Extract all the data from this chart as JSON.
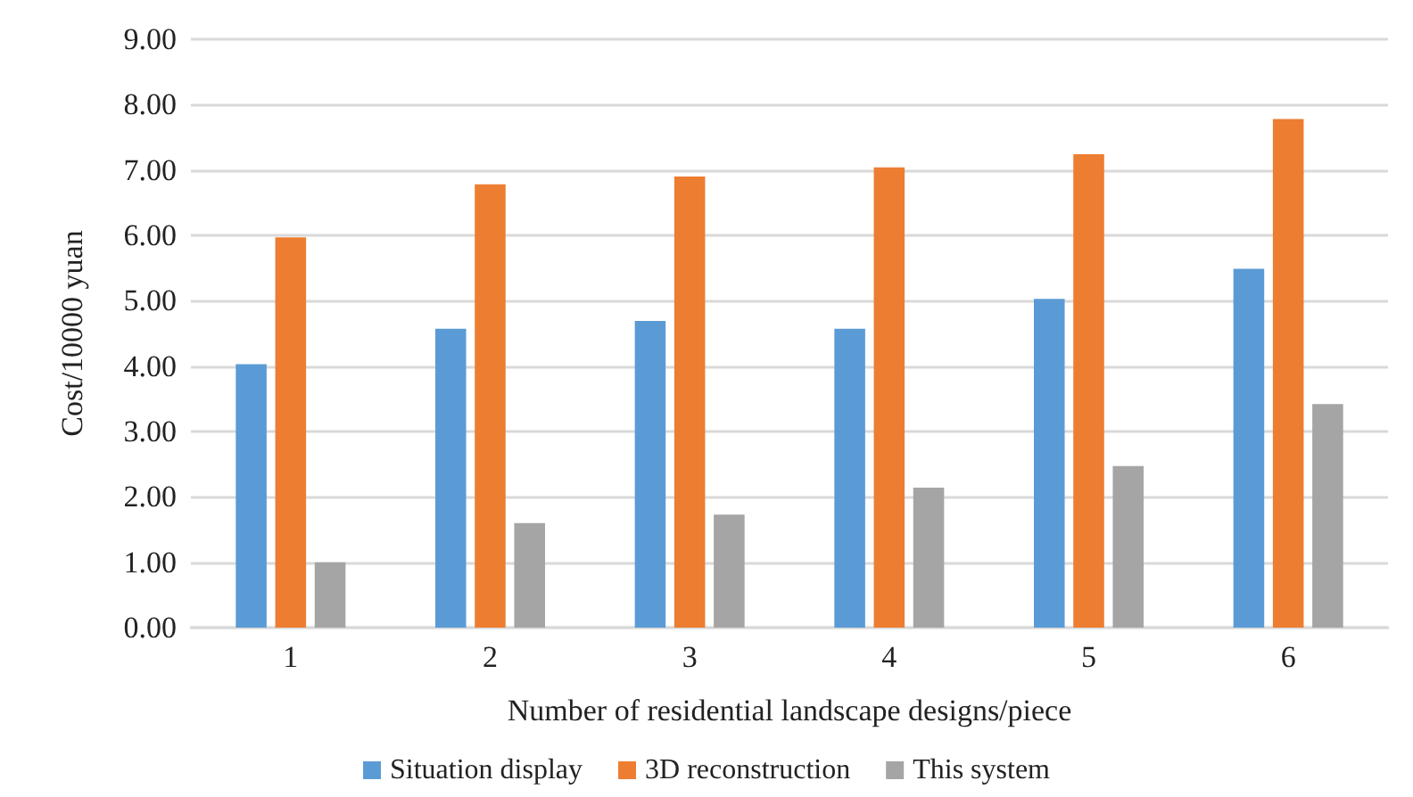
{
  "chart_data": {
    "type": "bar",
    "xlabel": "Number of residential landscape designs/piece",
    "ylabel": "Cost/10000 yuan",
    "categories": [
      "1",
      "2",
      "3",
      "4",
      "5",
      "6"
    ],
    "series": [
      {
        "name": "Situation display",
        "color": "#5b9bd5",
        "values": [
          4.03,
          4.57,
          4.69,
          4.57,
          5.03,
          5.49
        ]
      },
      {
        "name": "3D reconstruction",
        "color": "#ed7d31",
        "values": [
          5.97,
          6.78,
          6.9,
          7.04,
          7.24,
          7.78
        ]
      },
      {
        "name": "This system",
        "color": "#a5a5a5",
        "values": [
          1.0,
          1.6,
          1.73,
          2.14,
          2.47,
          3.42
        ]
      }
    ],
    "ylim": [
      0,
      9
    ],
    "yticks": [
      {
        "value": 0,
        "label": "0.00"
      },
      {
        "value": 1,
        "label": "1.00"
      },
      {
        "value": 2,
        "label": "2.00"
      },
      {
        "value": 3,
        "label": "3.00"
      },
      {
        "value": 4,
        "label": "4.00"
      },
      {
        "value": 5,
        "label": "5.00"
      },
      {
        "value": 6,
        "label": "6.00"
      },
      {
        "value": 7,
        "label": "7.00"
      },
      {
        "value": 8,
        "label": "8.00"
      },
      {
        "value": 9,
        "label": "9.00"
      }
    ],
    "grid": "y",
    "legend": "bottom"
  }
}
